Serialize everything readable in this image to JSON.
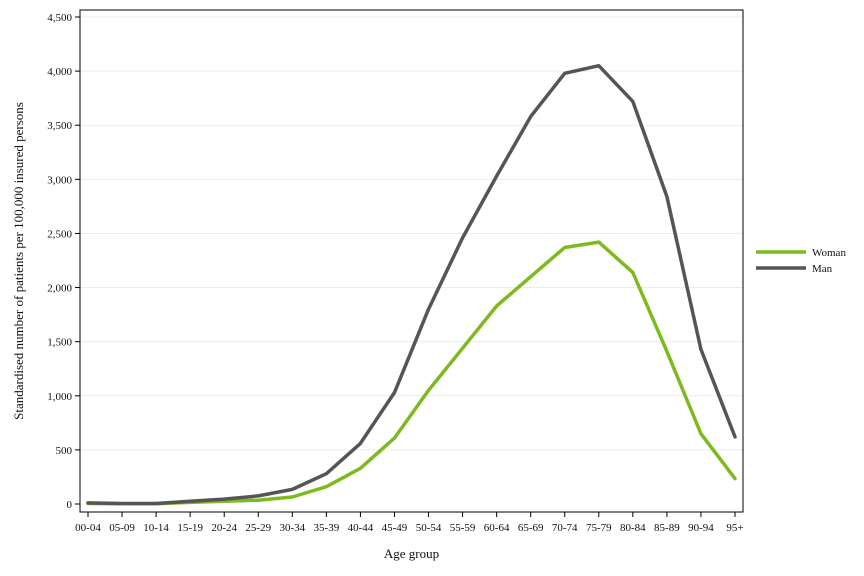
{
  "chart_data": {
    "type": "line",
    "title": "",
    "xlabel": "Age group",
    "ylabel": "Standardised number of patients per 100,000 insured persons",
    "categories": [
      "00-04",
      "05-09",
      "10-14",
      "15-19",
      "20-24",
      "25-29",
      "30-34",
      "35-39",
      "40-44",
      "45-49",
      "50-54",
      "55-59",
      "60-64",
      "65-69",
      "70-74",
      "75-79",
      "80-84",
      "85-89",
      "90-94",
      "95+"
    ],
    "ylim": [
      0,
      4500
    ],
    "yticks": [
      0,
      500,
      1000,
      1500,
      2000,
      2500,
      3000,
      3500,
      4000,
      4500
    ],
    "ytick_labels": [
      "0",
      "500",
      "1,000",
      "1,500",
      "2,000",
      "2,500",
      "3,000",
      "3,500",
      "4,000",
      "4,500"
    ],
    "grid": true,
    "legend_position": "right",
    "series": [
      {
        "name": "Woman",
        "color": "#7dba1f",
        "values": [
          5,
          3,
          3,
          15,
          25,
          35,
          65,
          160,
          330,
          610,
          1050,
          1440,
          1830,
          2100,
          2370,
          2420,
          2140,
          1410,
          650,
          235
        ]
      },
      {
        "name": "Man",
        "color": "#555555",
        "values": [
          10,
          5,
          5,
          25,
          45,
          75,
          135,
          280,
          560,
          1030,
          1800,
          2460,
          3030,
          3580,
          3980,
          4050,
          3720,
          2840,
          1430,
          620
        ]
      }
    ]
  }
}
